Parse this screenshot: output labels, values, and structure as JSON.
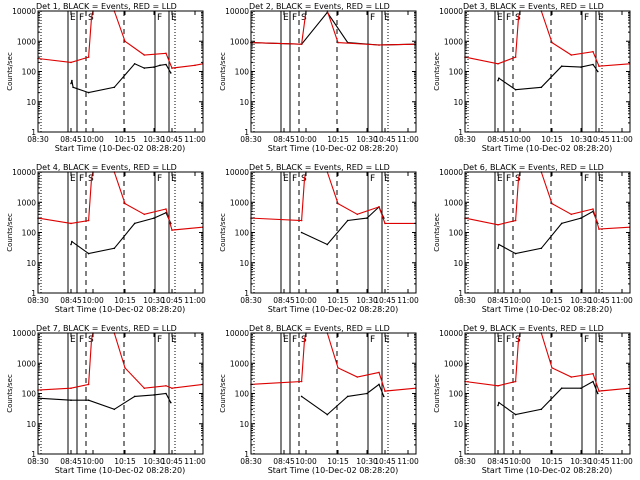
{
  "figure": {
    "ylabel": "Counts/sec",
    "xlabel": "Start Time (10-Dec-02 08:28:20)",
    "x_tick_labels": [
      "08:30",
      "08:45",
      "10:00",
      "10:15",
      "10:30",
      "10:45",
      "11:00"
    ],
    "y_tick_labels": [
      "1",
      "10",
      "100",
      "1000",
      "10000"
    ],
    "legend_note": "BLACK = Events, RED = LLD",
    "interval_letters": [
      "E",
      "F",
      "S",
      "F",
      "E"
    ]
  },
  "colors": {
    "events": "#000000",
    "lld": "#dd0000",
    "frame": "#000000",
    "background": "#ffffff"
  },
  "chart_data": [
    {
      "type": "line",
      "title": "Det 1, BLACK = Events, RED = LLD",
      "xlabel": "Start Time (10-Dec-02 08:28:20)",
      "ylabel": "Counts/sec",
      "yscale": "log",
      "ylim": [
        1,
        10000
      ],
      "xlim": [
        "08:30",
        "11:07"
      ],
      "series": [
        {
          "name": "Events",
          "x": [
            "08:45",
            "08:48",
            "08:52",
            "09:45",
            "10:10",
            "10:20",
            "10:25",
            "10:30",
            "10:35",
            "10:40",
            "10:44"
          ],
          "y": [
            40,
            50,
            30,
            20,
            30,
            180,
            130,
            140,
            160,
            170,
            90
          ]
        },
        {
          "name": "LLD",
          "x": [
            "08:30",
            "08:45",
            "09:45",
            "09:55",
            "10:00",
            "10:10",
            "10:15",
            "10:25",
            "10:40",
            "10:45",
            "11:00",
            "11:05"
          ],
          "y": [
            270,
            200,
            300,
            6000,
            10000,
            10000,
            1000,
            350,
            400,
            130,
            160,
            180
          ]
        }
      ]
    },
    {
      "type": "line",
      "title": "Det 2, BLACK = Events, RED = LLD",
      "xlabel": "Start Time (10-Dec-02 08:28:20)",
      "ylabel": "Counts/sec",
      "yscale": "log",
      "ylim": [
        1,
        10000
      ],
      "xlim": [
        "08:30",
        "11:07"
      ],
      "series": [
        {
          "name": "Events",
          "x": [
            "08:30",
            "09:45",
            "10:10",
            "10:20",
            "10:40",
            "11:05"
          ],
          "y": [
            900,
            800,
            9000,
            900,
            750,
            800
          ]
        },
        {
          "name": "LLD",
          "x": [
            "08:30",
            "09:45",
            "10:00",
            "10:10",
            "10:15",
            "10:40",
            "11:05"
          ],
          "y": [
            900,
            800,
            10000,
            10000,
            900,
            750,
            800
          ]
        }
      ]
    },
    {
      "type": "line",
      "title": "Det 3, BLACK = Events, RED = LLD",
      "xlabel": "Start Time (10-Dec-02 08:28:20)",
      "ylabel": "Counts/sec",
      "yscale": "log",
      "ylim": [
        1,
        10000
      ],
      "xlim": [
        "08:30",
        "11:07"
      ],
      "series": [
        {
          "name": "Events",
          "x": [
            "08:45",
            "08:48",
            "09:45",
            "10:10",
            "10:20",
            "10:30",
            "10:40",
            "10:44"
          ],
          "y": [
            50,
            60,
            25,
            30,
            150,
            140,
            170,
            100
          ]
        },
        {
          "name": "LLD",
          "x": [
            "08:30",
            "08:45",
            "09:45",
            "09:55",
            "10:00",
            "10:10",
            "10:15",
            "10:25",
            "10:40",
            "10:45",
            "11:05"
          ],
          "y": [
            300,
            180,
            300,
            6000,
            10000,
            10000,
            900,
            350,
            450,
            150,
            180
          ]
        }
      ]
    },
    {
      "type": "line",
      "title": "Det 4, BLACK = Events, RED = LLD",
      "xlabel": "Start Time (10-Dec-02 08:28:20)",
      "ylabel": "Counts/sec",
      "yscale": "log",
      "ylim": [
        1,
        10000
      ],
      "xlim": [
        "08:30",
        "11:07"
      ],
      "series": [
        {
          "name": "Events",
          "x": [
            "08:45",
            "08:48",
            "09:45",
            "10:10",
            "10:20",
            "10:30",
            "10:40",
            "10:44"
          ],
          "y": [
            40,
            50,
            20,
            30,
            200,
            300,
            450,
            200
          ]
        },
        {
          "name": "LLD",
          "x": [
            "08:30",
            "08:45",
            "09:45",
            "09:55",
            "10:00",
            "10:10",
            "10:15",
            "10:25",
            "10:40",
            "10:45",
            "11:05"
          ],
          "y": [
            300,
            200,
            250,
            6000,
            10000,
            10000,
            900,
            400,
            600,
            120,
            150
          ]
        }
      ]
    },
    {
      "type": "line",
      "title": "Det 5, BLACK = Events, RED = LLD",
      "xlabel": "Start Time (10-Dec-02 08:28:20)",
      "ylabel": "Counts/sec",
      "yscale": "log",
      "ylim": [
        1,
        10000
      ],
      "xlim": [
        "08:30",
        "11:07"
      ],
      "series": [
        {
          "name": "Events",
          "x": [
            "09:45",
            "10:10",
            "10:20",
            "10:30",
            "10:40",
            "10:44"
          ],
          "y": [
            100,
            40,
            250,
            300,
            700,
            300
          ]
        },
        {
          "name": "LLD",
          "x": [
            "08:30",
            "09:45",
            "09:55",
            "10:00",
            "10:10",
            "10:15",
            "10:25",
            "10:40",
            "10:45",
            "11:05"
          ],
          "y": [
            300,
            250,
            6000,
            10000,
            10000,
            900,
            400,
            700,
            200,
            200
          ]
        }
      ]
    },
    {
      "type": "line",
      "title": "Det 6, BLACK = Events, RED = LLD",
      "xlabel": "Start Time (10-Dec-02 08:28:20)",
      "ylabel": "Counts/sec",
      "yscale": "log",
      "ylim": [
        1,
        10000
      ],
      "xlim": [
        "08:30",
        "11:07"
      ],
      "series": [
        {
          "name": "Events",
          "x": [
            "08:45",
            "08:48",
            "09:45",
            "10:10",
            "10:20",
            "10:30",
            "10:40",
            "10:44"
          ],
          "y": [
            30,
            40,
            20,
            30,
            200,
            300,
            500,
            200
          ]
        },
        {
          "name": "LLD",
          "x": [
            "08:30",
            "08:45",
            "09:45",
            "09:55",
            "10:00",
            "10:10",
            "10:15",
            "10:25",
            "10:40",
            "10:45",
            "11:05"
          ],
          "y": [
            300,
            180,
            250,
            6000,
            10000,
            10000,
            900,
            400,
            600,
            130,
            150
          ]
        }
      ]
    },
    {
      "type": "line",
      "title": "Det 7, BLACK = Events, RED = LLD",
      "xlabel": "Start Time (10-Dec-02 08:28:20)",
      "ylabel": "Counts/sec",
      "yscale": "log",
      "ylim": [
        1,
        10000
      ],
      "xlim": [
        "08:30",
        "11:07"
      ],
      "series": [
        {
          "name": "Events",
          "x": [
            "08:30",
            "08:45",
            "09:45",
            "10:10",
            "10:20",
            "10:30",
            "10:40",
            "10:44"
          ],
          "y": [
            70,
            60,
            60,
            30,
            80,
            90,
            100,
            50
          ]
        },
        {
          "name": "LLD",
          "x": [
            "08:30",
            "08:45",
            "09:45",
            "09:55",
            "10:00",
            "10:10",
            "10:15",
            "10:25",
            "10:40",
            "10:45",
            "11:05"
          ],
          "y": [
            130,
            150,
            200,
            6000,
            10000,
            10000,
            700,
            150,
            180,
            150,
            200
          ]
        }
      ]
    },
    {
      "type": "line",
      "title": "Det 8, BLACK = Events, RED = LLD",
      "xlabel": "Start Time (10-Dec-02 08:28:20)",
      "ylabel": "Counts/sec",
      "yscale": "log",
      "ylim": [
        1,
        10000
      ],
      "xlim": [
        "08:30",
        "11:07"
      ],
      "series": [
        {
          "name": "Events",
          "x": [
            "09:45",
            "10:10",
            "10:20",
            "10:30",
            "10:40",
            "10:44"
          ],
          "y": [
            80,
            20,
            80,
            100,
            200,
            80
          ]
        },
        {
          "name": "LLD",
          "x": [
            "08:30",
            "09:45",
            "09:55",
            "10:00",
            "10:10",
            "10:15",
            "10:25",
            "10:40",
            "10:45",
            "11:05"
          ],
          "y": [
            200,
            250,
            6000,
            10000,
            10000,
            700,
            350,
            500,
            120,
            150
          ]
        }
      ]
    },
    {
      "type": "line",
      "title": "Det 9, BLACK = Events, RED = LLD",
      "xlabel": "Start Time (10-Dec-02 08:28:20)",
      "ylabel": "Counts/sec",
      "yscale": "log",
      "ylim": [
        1,
        10000
      ],
      "xlim": [
        "08:30",
        "11:07"
      ],
      "series": [
        {
          "name": "Events",
          "x": [
            "08:45",
            "08:48",
            "09:45",
            "10:10",
            "10:20",
            "10:30",
            "10:40",
            "10:44"
          ],
          "y": [
            40,
            50,
            20,
            30,
            150,
            150,
            250,
            100
          ]
        },
        {
          "name": "LLD",
          "x": [
            "08:30",
            "08:45",
            "09:45",
            "09:55",
            "10:00",
            "10:10",
            "10:15",
            "10:25",
            "10:40",
            "10:45",
            "11:05"
          ],
          "y": [
            250,
            180,
            250,
            6000,
            10000,
            10000,
            700,
            350,
            450,
            120,
            150
          ]
        }
      ]
    }
  ]
}
